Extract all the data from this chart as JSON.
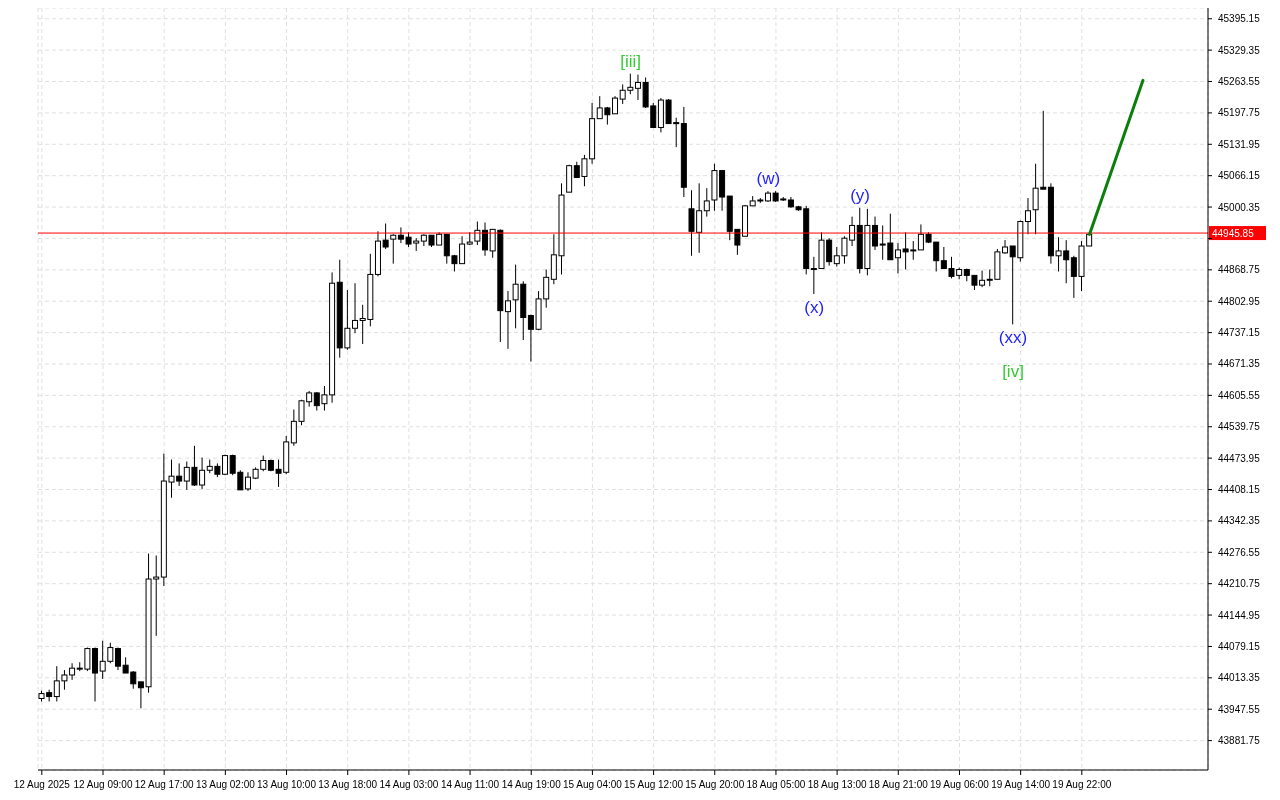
{
  "chart_data": {
    "type": "candlestick",
    "categories": [
      "12 Aug 2025",
      null,
      null,
      null,
      null,
      null,
      null,
      null,
      "12 Aug 09:00",
      null,
      null,
      null,
      null,
      null,
      null,
      null,
      "12 Aug 17:00",
      null,
      null,
      null,
      null,
      null,
      null,
      null,
      "13 Aug 02:00",
      null,
      null,
      null,
      null,
      null,
      null,
      null,
      "13 Aug 10:00",
      null,
      null,
      null,
      null,
      null,
      null,
      null,
      "13 Aug 18:00",
      null,
      null,
      null,
      null,
      null,
      null,
      null,
      "14 Aug 03:00",
      null,
      null,
      null,
      null,
      null,
      null,
      null,
      "14 Aug 11:00",
      null,
      null,
      null,
      null,
      null,
      null,
      null,
      "14 Aug 19:00",
      null,
      null,
      null,
      null,
      null,
      null,
      null,
      "15 Aug 04:00",
      null,
      null,
      null,
      null,
      null,
      null,
      null,
      "15 Aug 12:00",
      null,
      null,
      null,
      null,
      null,
      null,
      null,
      "15 Aug 20:00",
      null,
      null,
      null,
      null,
      null,
      null,
      null,
      "18 Aug 05:00",
      null,
      null,
      null,
      null,
      null,
      null,
      null,
      "18 Aug 13:00",
      null,
      null,
      null,
      null,
      null,
      null,
      null,
      "18 Aug 21:00",
      null,
      null,
      null,
      null,
      null,
      null,
      null,
      "19 Aug 06:00",
      null,
      null,
      null,
      null,
      null,
      null,
      null,
      "19 Aug 14:00",
      null,
      null,
      null,
      null,
      null,
      null,
      null,
      "19 Aug 22:00",
      null,
      null,
      null,
      null,
      null,
      null,
      null,
      null,
      null,
      null,
      null,
      null,
      null,
      null,
      null,
      null
    ],
    "ohlc": [
      [
        43970.0,
        43986.4,
        43963.8,
        43980.3
      ],
      [
        43982.3,
        43988.5,
        43963.8,
        43974.1
      ],
      [
        43974.1,
        44037.8,
        43963.8,
        44007.0
      ],
      [
        44007.0,
        44029.6,
        43988.5,
        44019.3
      ],
      [
        44019.3,
        44043.9,
        44009.0,
        44033.6
      ],
      [
        44031.6,
        44046.0,
        44027.5,
        44033.6
      ],
      [
        44031.6,
        44076.8,
        44027.5,
        44074.7
      ],
      [
        44074.7,
        44076.8,
        43963.8,
        44023.4
      ],
      [
        44027.5,
        44091.1,
        44011.0,
        44048.0
      ],
      [
        44048.0,
        44087.0,
        44043.9,
        44076.8
      ],
      [
        44074.7,
        44076.8,
        44029.6,
        44037.8
      ],
      [
        44039.8,
        44056.3,
        44023.4,
        44023.4
      ],
      [
        44025.4,
        44027.5,
        43990.5,
        44000.8
      ],
      [
        44004.9,
        44004.9,
        43949.4,
        43992.6
      ],
      [
        43994.6,
        44273.9,
        43982.3,
        44220.5
      ],
      [
        44220.5,
        44269.8,
        44101.4,
        44224.6
      ],
      [
        44224.6,
        44483.4,
        44206.1,
        44425.9
      ],
      [
        44423.8,
        44471.0,
        44391.0,
        44436.1
      ],
      [
        44436.1,
        44462.9,
        44415.6,
        44425.9
      ],
      [
        44425.9,
        44466.9,
        44407.4,
        44454.6
      ],
      [
        44454.6,
        44499.8,
        44415.6,
        44417.6
      ],
      [
        44417.6,
        44475.1,
        44409.4,
        44448.5
      ],
      [
        44448.5,
        44471.0,
        44442.3,
        44456.7
      ],
      [
        44456.7,
        44462.9,
        44434.1,
        44440.2
      ],
      [
        44440.2,
        44481.3,
        44438.2,
        44479.3
      ],
      [
        44479.3,
        44481.3,
        44438.2,
        44442.3
      ],
      [
        44444.3,
        44448.5,
        44407.4,
        44407.4
      ],
      [
        44409.4,
        44444.3,
        44405.3,
        44434.1
      ],
      [
        44432.0,
        44454.6,
        44430.0,
        44450.5
      ],
      [
        44450.5,
        44479.3,
        44446.4,
        44469.0
      ],
      [
        44469.0,
        44471.0,
        44446.4,
        44448.5
      ],
      [
        44450.5,
        44471.0,
        44413.6,
        44442.3
      ],
      [
        44444.3,
        44520.4,
        44440.2,
        44508.0
      ],
      [
        44505.9,
        44575.8,
        44499.8,
        44551.1
      ],
      [
        44551.1,
        44596.3,
        44542.9,
        44594.2
      ],
      [
        44592.2,
        44614.8,
        44581.9,
        44610.7
      ],
      [
        44610.7,
        44612.7,
        44573.7,
        44584.0
      ],
      [
        44588.1,
        44625.1,
        44573.7,
        44606.6
      ],
      [
        44606.6,
        44863.3,
        44590.1,
        44840.7
      ],
      [
        44842.7,
        44889.9,
        44684.6,
        44705.1
      ],
      [
        44705.1,
        44826.3,
        44701.0,
        44746.2
      ],
      [
        44746.2,
        44840.7,
        44735.9,
        44762.6
      ],
      [
        44762.6,
        44795.5,
        44713.3,
        44766.7
      ],
      [
        44764.7,
        44902.3,
        44750.3,
        44859.1
      ],
      [
        44859.1,
        44949.5,
        44855.0,
        44929.0
      ],
      [
        44931.0,
        44965.9,
        44912.5,
        44916.6
      ],
      [
        44933.1,
        44943.3,
        44881.7,
        44941.3
      ],
      [
        44941.3,
        44957.7,
        44924.9,
        44933.1
      ],
      [
        44937.2,
        44947.4,
        44916.6,
        44922.8
      ],
      [
        44924.9,
        44935.1,
        44908.4,
        44929.0
      ],
      [
        44929.0,
        44943.3,
        44918.7,
        44941.3
      ],
      [
        44941.3,
        44941.3,
        44916.6,
        44920.7
      ],
      [
        44920.7,
        44947.4,
        44920.7,
        44943.3
      ],
      [
        44943.3,
        44943.3,
        44881.7,
        44898.2
      ],
      [
        44898.2,
        44900.2,
        44865.3,
        44881.7
      ],
      [
        44881.7,
        44939.2,
        44881.7,
        44922.8
      ],
      [
        44922.8,
        44947.4,
        44920.7,
        44926.9
      ],
      [
        44929.0,
        44970.0,
        44920.7,
        44951.6
      ],
      [
        44951.6,
        44968.0,
        44898.2,
        44910.5
      ],
      [
        44908.4,
        44953.6,
        44894.1,
        44953.6
      ],
      [
        44951.6,
        44953.6,
        44717.5,
        44783.2
      ],
      [
        44781.1,
        44824.2,
        44703.1,
        44803.7
      ],
      [
        44805.8,
        44879.7,
        44746.2,
        44838.6
      ],
      [
        44838.6,
        44844.8,
        44721.6,
        44768.8
      ],
      [
        44772.9,
        44774.9,
        44676.4,
        44744.1
      ],
      [
        44744.1,
        44824.2,
        44742.1,
        44807.8
      ],
      [
        44807.8,
        44869.4,
        44789.3,
        44853.0
      ],
      [
        44848.9,
        44943.3,
        44838.6,
        44900.2
      ],
      [
        44898.2,
        45050.1,
        44859.1,
        45025.5
      ],
      [
        45031.6,
        45089.1,
        45031.6,
        45087.1
      ],
      [
        45087.1,
        45095.3,
        45062.4,
        45062.4
      ],
      [
        45064.5,
        45109.7,
        45044.0,
        45101.5
      ],
      [
        45101.5,
        45218.5,
        45091.2,
        45185.7
      ],
      [
        45185.7,
        45232.9,
        45185.7,
        45208.2
      ],
      [
        45208.2,
        45210.3,
        45173.3,
        45193.9
      ],
      [
        45195.9,
        45232.9,
        45195.9,
        45228.8
      ],
      [
        45226.7,
        45257.5,
        45216.5,
        45245.2
      ],
      [
        45245.2,
        45280.1,
        45237.0,
        45251.4
      ],
      [
        45249.3,
        45278.1,
        45224.7,
        45261.6
      ],
      [
        45261.6,
        45271.9,
        45208.2,
        45210.3
      ],
      [
        45212.4,
        45218.5,
        45167.2,
        45167.2
      ],
      [
        45167.2,
        45228.8,
        45156.9,
        45224.7
      ],
      [
        45224.7,
        45226.7,
        45175.4,
        45175.4
      ],
      [
        45177.4,
        45187.7,
        45126.1,
        45175.4
      ],
      [
        45175.4,
        45210.3,
        45021.4,
        45041.9
      ],
      [
        44996.7,
        45035.7,
        44898.2,
        44949.5
      ],
      [
        44947.4,
        45050.1,
        44904.3,
        44992.6
      ],
      [
        44992.6,
        45039.9,
        44980.3,
        45013.2
      ],
      [
        45015.2,
        45091.2,
        44992.6,
        45076.8
      ],
      [
        45076.8,
        45076.8,
        44992.6,
        45021.4
      ],
      [
        45023.4,
        45023.4,
        44931.0,
        44949.5
      ],
      [
        44953.6,
        44953.6,
        44900.2,
        44920.7
      ],
      [
        44939.2,
        45004.9,
        44939.2,
        45002.9
      ],
      [
        45002.9,
        45023.4,
        45002.9,
        45013.2
      ],
      [
        45013.2,
        45019.3,
        45009.1,
        45015.2
      ],
      [
        45013.2,
        45033.7,
        45011.1,
        45029.6
      ],
      [
        45029.6,
        45033.7,
        45011.1,
        45013.2
      ],
      [
        45017.3,
        45021.4,
        45013.2,
        45017.3
      ],
      [
        45015.2,
        45021.4,
        44998.8,
        45000.8
      ],
      [
        45000.8,
        45002.9,
        44992.6,
        44994.7
      ],
      [
        44996.7,
        45002.9,
        44859.1,
        44871.5
      ],
      [
        44871.5,
        44896.1,
        44818.1,
        44869.4
      ],
      [
        44871.5,
        44947.4,
        44871.5,
        44931.0
      ],
      [
        44931.0,
        44935.1,
        44877.6,
        44885.9
      ],
      [
        44881.7,
        44916.6,
        44875.6,
        44898.2
      ],
      [
        44898.2,
        44939.2,
        44881.7,
        44935.1
      ],
      [
        44931.0,
        44980.3,
        44918.7,
        44961.8
      ],
      [
        44961.8,
        44998.8,
        44861.2,
        44871.5
      ],
      [
        44871.5,
        44996.7,
        44857.1,
        44961.8
      ],
      [
        44961.8,
        44980.3,
        44910.5,
        44918.7
      ],
      [
        44922.8,
        44961.8,
        44889.9,
        44920.7
      ],
      [
        44924.9,
        44986.5,
        44889.9,
        44889.9
      ],
      [
        44894.1,
        44924.9,
        44861.2,
        44910.5
      ],
      [
        44912.5,
        44947.4,
        44869.4,
        44906.4
      ],
      [
        44908.4,
        44929.0,
        44889.9,
        44910.5
      ],
      [
        44910.5,
        44963.9,
        44910.5,
        44943.3
      ],
      [
        44943.3,
        44947.4,
        44924.9,
        44926.9
      ],
      [
        44926.9,
        44926.9,
        44865.3,
        44887.9
      ],
      [
        44887.9,
        44916.6,
        44871.5,
        44871.5
      ],
      [
        44871.5,
        44896.1,
        44850.9,
        44855.0
      ],
      [
        44857.1,
        44873.5,
        44848.9,
        44869.4
      ],
      [
        44869.4,
        44871.5,
        44844.8,
        44857.1
      ],
      [
        44857.1,
        44857.1,
        44826.3,
        44836.6
      ],
      [
        44836.6,
        44867.3,
        44832.4,
        44846.8
      ],
      [
        44846.8,
        44869.4,
        44834.5,
        44848.9
      ],
      [
        44848.9,
        44912.5,
        44848.9,
        44906.4
      ],
      [
        44904.3,
        44931.0,
        44902.3,
        44916.6
      ],
      [
        44918.7,
        44918.7,
        44754.4,
        44896.1
      ],
      [
        44894.1,
        44972.1,
        44885.9,
        44970.0
      ],
      [
        44970.0,
        45019.3,
        44943.3,
        44992.6
      ],
      [
        44994.7,
        45091.2,
        44943.3,
        45039.9
      ],
      [
        45041.9,
        45202.1,
        45037.8,
        45037.8
      ],
      [
        45041.9,
        45050.1,
        44881.7,
        44898.2
      ],
      [
        44898.2,
        44937.2,
        44865.3,
        44908.4
      ],
      [
        44908.4,
        44931.0,
        44840.7,
        44889.9
      ],
      [
        44894.1,
        44898.2,
        44809.9,
        44855.0
      ],
      [
        44855.0,
        44929.0,
        44824.2,
        44918.7
      ],
      [
        44918.7,
        44945.4,
        44918.7,
        44943.3
      ],
      null,
      null,
      null,
      null,
      null,
      null,
      null,
      null,
      null,
      null,
      null,
      null,
      null,
      null,
      null
    ],
    "series": [
      {
        "type": "line",
        "color": "#0a800a",
        "values": [
          null,
          null,
          null,
          null,
          null,
          null,
          null,
          null,
          null,
          null,
          null,
          null,
          null,
          null,
          null,
          null,
          null,
          null,
          null,
          null,
          null,
          null,
          null,
          null,
          null,
          null,
          null,
          null,
          null,
          null,
          null,
          null,
          null,
          null,
          null,
          null,
          null,
          null,
          null,
          null,
          null,
          null,
          null,
          null,
          null,
          null,
          null,
          null,
          null,
          null,
          null,
          null,
          null,
          null,
          null,
          null,
          null,
          null,
          null,
          null,
          null,
          null,
          null,
          null,
          null,
          null,
          null,
          null,
          null,
          null,
          null,
          null,
          null,
          null,
          null,
          null,
          null,
          null,
          null,
          null,
          null,
          null,
          null,
          null,
          null,
          null,
          null,
          null,
          null,
          null,
          null,
          null,
          null,
          null,
          null,
          null,
          null,
          null,
          null,
          null,
          null,
          null,
          null,
          null,
          null,
          null,
          null,
          null,
          null,
          null,
          null,
          null,
          null,
          null,
          null,
          null,
          null,
          null,
          null,
          null,
          null,
          null,
          null,
          null,
          null,
          null,
          null,
          null,
          null,
          null,
          null,
          null,
          null,
          null,
          null,
          null,
          null,
          44943,
          null,
          null,
          null,
          null,
          null,
          null,
          45266,
          null,
          null,
          null,
          null,
          null,
          null,
          null,
          null
        ]
      }
    ],
    "ylim": [
      43820.1,
      45417.7
    ],
    "yticks": [
      43881.75,
      43947.55,
      44013.35,
      44079.15,
      44144.95,
      44210.75,
      44276.55,
      44342.35,
      44408.15,
      44473.95,
      44539.75,
      44605.55,
      44671.35,
      44737.15,
      44802.95,
      44868.75,
      {
        "value": 44934.55,
        "label": null
      },
      45000.35,
      45066.15,
      45131.95,
      45197.75,
      45263.55,
      45329.35,
      45395.15
    ],
    "grid": true,
    "ref_lines": [
      {
        "axis": "y",
        "value": 44945.85,
        "label": "44945.85",
        "color": "#ff0000"
      }
    ],
    "annotations": [
      "[iii]",
      "(w)",
      "(x)",
      "(y)",
      "(xx)",
      "[iv]"
    ]
  }
}
